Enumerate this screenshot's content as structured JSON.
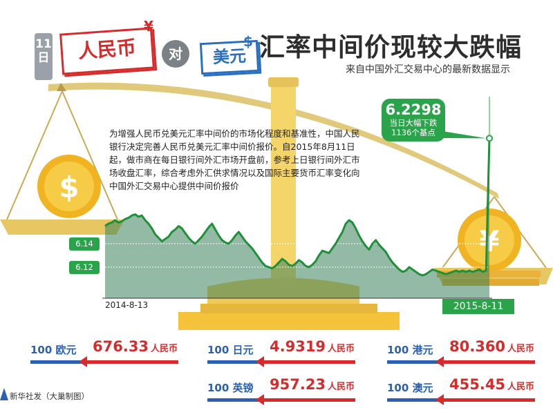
{
  "header": {
    "date": "11日",
    "rmb": "人民币",
    "dui": "对",
    "usd": "美元",
    "yen_sign": "¥",
    "dollar_sign": "$",
    "headline": "汇率中间价现较大跌幅",
    "subtitle": "来自中国外汇交易中心的最新数据显示"
  },
  "intro": "为增强人民币兑美元汇率中间价的市场化程度和基准性，中国人民银行决定完善人民币兑美元汇率中间价报价。自2015年8月11日起，做市商在每日银行间外汇市场开盘前，参考上日银行间外汇市场收盘汇率，综合考虑外汇供求情况以及国际主要货币汇率变化向中国外汇交易中心提供中间价报价",
  "callout": {
    "value": "6.2298",
    "line1": "当日大幅下跌",
    "line2": "1136个基点"
  },
  "coins": {
    "left_symbol": "$",
    "right_symbol": "¥"
  },
  "colors": {
    "green": "#2aa34a",
    "red": "#d62b2b",
    "blue": "#2b5fb0",
    "gold": "#f0c23a"
  },
  "chart_data": {
    "type": "area",
    "x_start": "2014-8-13",
    "x_end": "2015-8-11",
    "ylim": [
      6.1,
      6.22
    ],
    "yticks": [
      "6.14",
      "6.12"
    ],
    "values": [
      6.155,
      6.157,
      6.158,
      6.16,
      6.158,
      6.159,
      6.161,
      6.162,
      6.164,
      6.165,
      6.163,
      6.164,
      6.16,
      6.157,
      6.153,
      6.148,
      6.145,
      6.142,
      6.144,
      6.146,
      6.15,
      6.152,
      6.155,
      6.153,
      6.149,
      6.145,
      6.142,
      6.14,
      6.143,
      6.146,
      6.15,
      6.154,
      6.157,
      6.152,
      6.147,
      6.143,
      6.141,
      6.14,
      6.143,
      6.147,
      6.15,
      6.146,
      6.142,
      6.139,
      6.136,
      6.132,
      6.128,
      6.124,
      6.121,
      6.12,
      6.119,
      6.121,
      6.124,
      6.127,
      6.125,
      6.122,
      6.121,
      6.123,
      6.126,
      6.124,
      6.121,
      6.12,
      6.122,
      6.125,
      6.13,
      6.134,
      6.133,
      6.132,
      6.136,
      6.14,
      6.145,
      6.15,
      6.157,
      6.16,
      6.158,
      6.153,
      6.147,
      6.142,
      6.138,
      6.135,
      6.14,
      6.143,
      6.139,
      6.136,
      6.133,
      6.128,
      6.124,
      6.121,
      6.118,
      6.116,
      6.117,
      6.12,
      6.118,
      6.116,
      6.114,
      6.113,
      6.114,
      6.116,
      6.118,
      6.117,
      6.116,
      6.115,
      6.114,
      6.115,
      6.116,
      6.117,
      6.116,
      6.117,
      6.116,
      6.117,
      6.116,
      6.117,
      6.118,
      6.116,
      6.117,
      6.2298
    ],
    "title": "",
    "xlabel": "",
    "ylabel": ""
  },
  "rates": [
    {
      "amount": "100",
      "currency": "欧元",
      "value": "676.33",
      "unit": "人民币"
    },
    {
      "amount": "100",
      "currency": "日元",
      "value": "4.9319",
      "unit": "人民币"
    },
    {
      "amount": "100",
      "currency": "港元",
      "value": "80.360",
      "unit": "人民币"
    },
    {
      "amount": "100",
      "currency": "英镑",
      "value": "957.23",
      "unit": "人民币"
    },
    {
      "amount": "100",
      "currency": "澳元",
      "value": "455.45",
      "unit": "人民币"
    }
  ],
  "footer": "新华社发（大巢制图）"
}
